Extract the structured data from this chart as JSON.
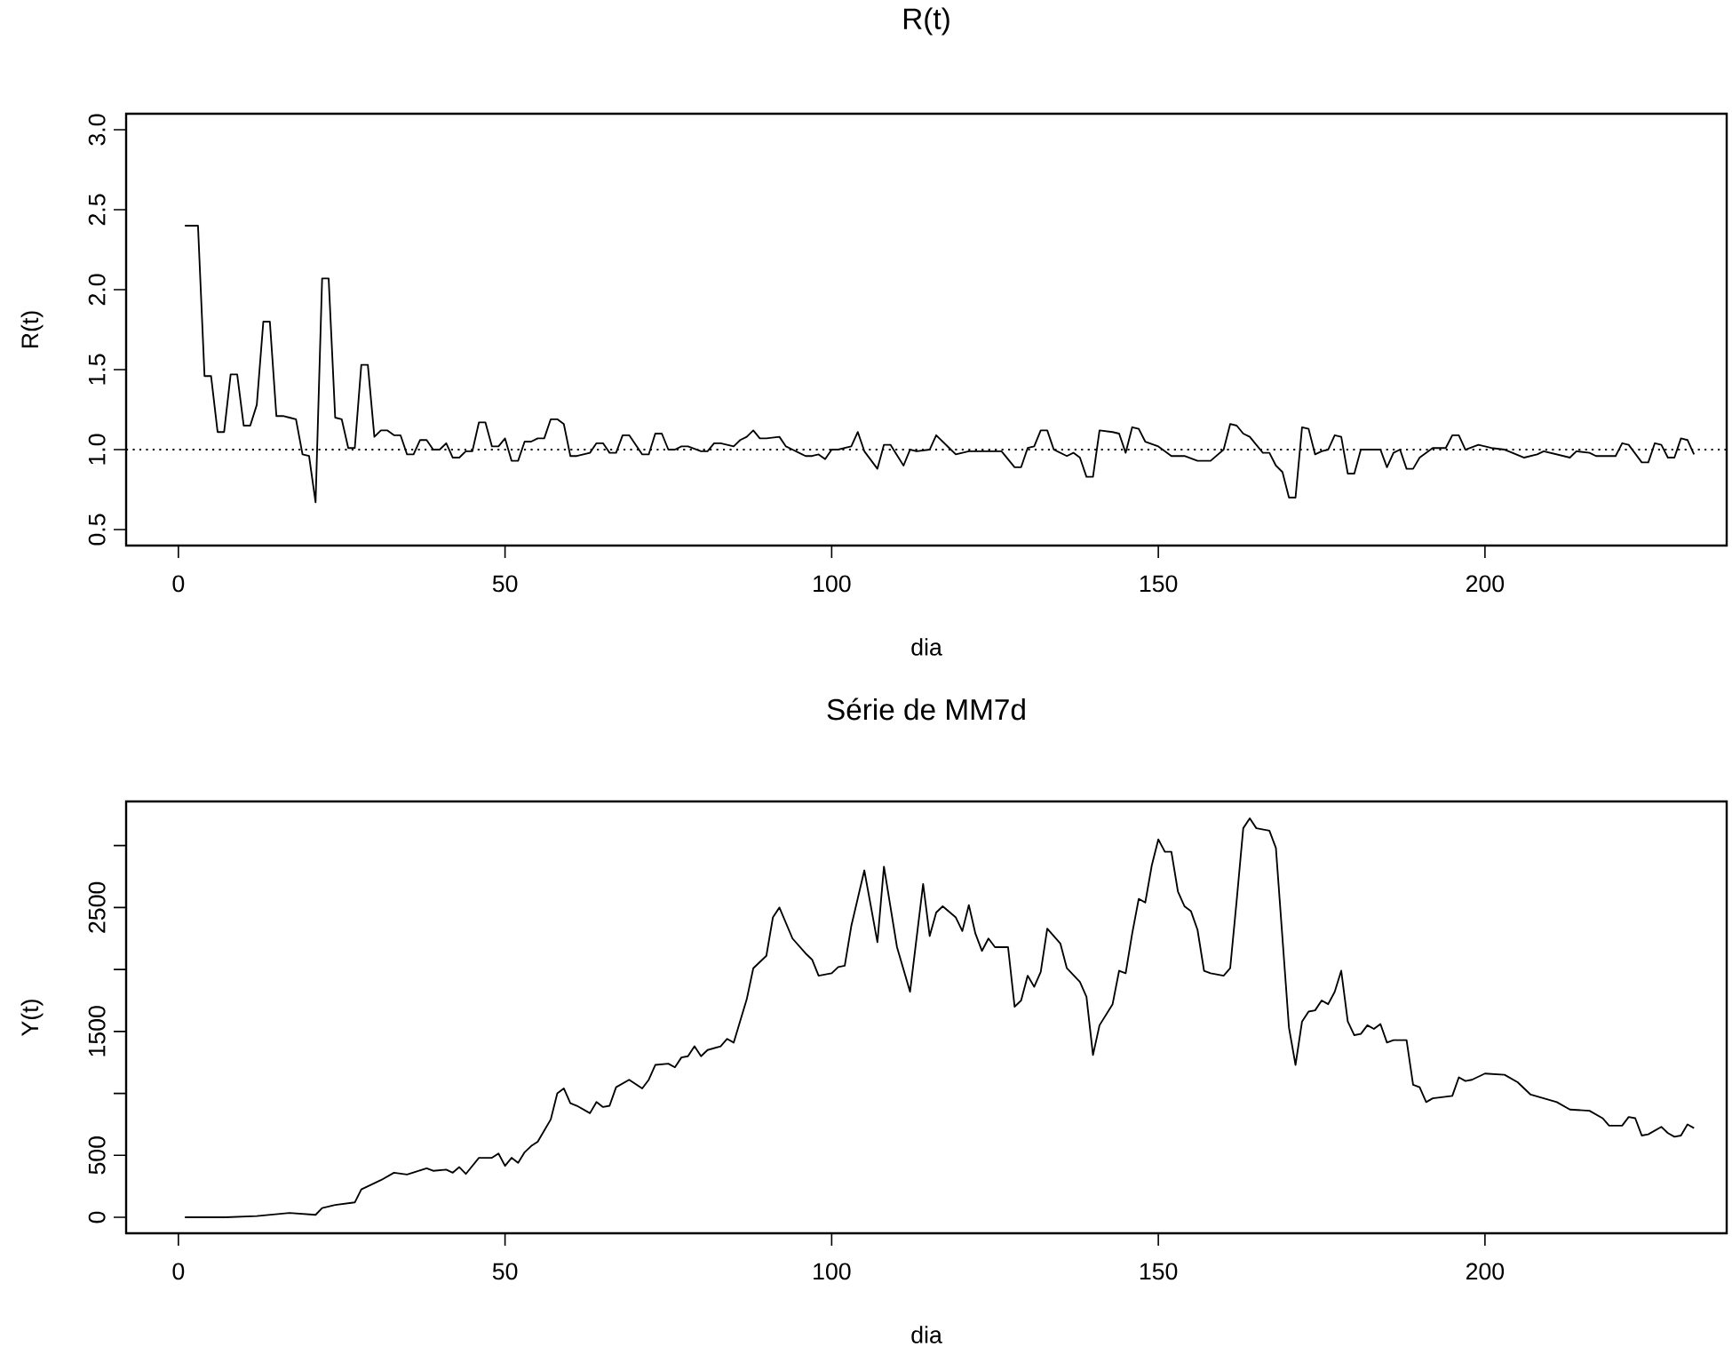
{
  "chart_data": [
    {
      "type": "line",
      "title": "R(t)",
      "xlabel": "dia",
      "ylabel": "R(t)",
      "marker": "none",
      "xlim": [
        -8,
        237
      ],
      "ylim": [
        0.4,
        3.1
      ],
      "xticks": [
        0,
        50,
        100,
        150,
        200
      ],
      "yticks": [
        {
          "value": 0.5,
          "label": "0.5"
        },
        {
          "value": 1,
          "label": "1.0"
        },
        {
          "value": 1.5,
          "label": "1.5"
        },
        {
          "value": 2,
          "label": "2.0"
        },
        {
          "value": 2.5,
          "label": "2.5"
        },
        {
          "value": 3,
          "label": "3.0"
        }
      ],
      "ref_lines": [
        {
          "axis": "y",
          "value": 1,
          "line_style": "dotted",
          "color": "#000000"
        }
      ],
      "x": [
        1,
        3,
        4,
        5,
        6,
        7,
        8,
        9,
        10,
        11,
        12,
        13,
        14,
        15,
        16,
        17,
        18,
        19,
        20,
        21,
        22,
        23,
        24,
        25,
        26,
        27,
        28,
        29,
        30,
        31,
        32,
        33,
        34,
        35,
        36,
        37,
        38,
        39,
        40,
        41,
        42,
        43,
        44,
        45,
        46,
        47,
        48,
        49,
        50,
        51,
        52,
        53,
        54,
        55,
        56,
        57,
        58,
        59,
        60,
        61,
        62,
        63,
        64,
        65,
        66,
        67,
        68,
        69,
        70,
        71,
        72,
        73,
        74,
        75,
        76,
        77,
        78,
        80,
        81,
        82,
        83,
        85,
        86,
        87,
        88,
        89,
        90,
        92,
        93,
        94,
        95,
        96,
        97,
        98,
        99,
        100,
        101,
        102,
        103,
        104,
        105,
        107,
        108,
        109,
        111,
        112,
        113,
        115,
        116,
        118,
        119,
        121,
        126,
        128,
        129,
        130,
        131,
        132,
        133,
        134,
        136,
        137,
        138,
        139,
        140,
        141,
        143,
        144,
        145,
        146,
        147,
        148,
        150,
        152,
        154,
        156,
        158,
        160,
        161,
        162,
        163,
        164,
        166,
        167,
        168,
        169,
        170,
        171,
        172,
        173,
        174,
        175,
        176,
        177,
        178,
        179,
        180,
        181,
        182,
        184,
        185,
        186,
        187,
        188,
        189,
        190,
        192,
        194,
        195,
        196,
        197,
        199,
        201,
        203,
        206,
        208,
        209,
        211,
        213,
        214,
        216,
        217,
        220,
        221,
        222,
        224,
        225,
        226,
        227,
        228,
        229,
        230,
        231,
        232
      ],
      "series": [
        {
          "color": "#000000",
          "values": [
            2.4,
            2.4,
            1.46,
            1.46,
            1.11,
            1.11,
            1.47,
            1.47,
            1.15,
            1.15,
            1.28,
            1.8,
            1.8,
            1.21,
            1.21,
            1.2,
            1.19,
            0.97,
            0.96,
            0.67,
            2.07,
            2.07,
            1.2,
            1.19,
            1.01,
            1.01,
            1.53,
            1.53,
            1.08,
            1.12,
            1.12,
            1.09,
            1.09,
            0.97,
            0.97,
            1.06,
            1.06,
            1.0,
            1.0,
            1.04,
            0.95,
            0.95,
            0.99,
            0.99,
            1.17,
            1.17,
            1.02,
            1.02,
            1.07,
            0.93,
            0.93,
            1.05,
            1.05,
            1.07,
            1.07,
            1.19,
            1.19,
            1.16,
            0.96,
            0.96,
            0.97,
            0.98,
            1.04,
            1.04,
            0.98,
            0.98,
            1.09,
            1.09,
            1.03,
            0.97,
            0.97,
            1.1,
            1.1,
            1.0,
            1.0,
            1.02,
            1.02,
            0.99,
            0.99,
            1.04,
            1.04,
            1.02,
            1.06,
            1.08,
            1.12,
            1.07,
            1.07,
            1.08,
            1.02,
            1.0,
            0.98,
            0.96,
            0.96,
            0.97,
            0.94,
            1.0,
            1.0,
            1.01,
            1.02,
            1.11,
            0.99,
            0.88,
            1.03,
            1.03,
            0.9,
            1.0,
            0.99,
            1.0,
            1.09,
            1.01,
            0.97,
            0.99,
            0.99,
            0.89,
            0.89,
            1.01,
            1.02,
            1.12,
            1.12,
            1.0,
            0.96,
            0.98,
            0.95,
            0.83,
            0.83,
            1.12,
            1.11,
            1.1,
            0.98,
            1.14,
            1.13,
            1.05,
            1.02,
            0.96,
            0.96,
            0.93,
            0.93,
            1.0,
            1.16,
            1.15,
            1.1,
            1.08,
            0.98,
            0.98,
            0.9,
            0.86,
            0.7,
            0.7,
            1.14,
            1.13,
            0.97,
            0.99,
            1.0,
            1.09,
            1.08,
            0.85,
            0.85,
            1.0,
            1.0,
            1.0,
            0.89,
            0.98,
            1.0,
            0.88,
            0.88,
            0.95,
            1.01,
            1.01,
            1.09,
            1.09,
            1.0,
            1.03,
            1.01,
            1.0,
            0.95,
            0.97,
            0.99,
            0.97,
            0.95,
            0.99,
            0.98,
            0.96,
            0.96,
            1.04,
            1.03,
            0.92,
            0.92,
            1.04,
            1.03,
            0.95,
            0.95,
            1.07,
            1.06,
            0.97
          ]
        }
      ]
    },
    {
      "type": "line",
      "title": "Série de MM7d",
      "xlabel": "dia",
      "ylabel": "Y(t)",
      "marker": "none",
      "xlim": [
        -8,
        237
      ],
      "ylim": [
        -129,
        3356
      ],
      "xticks": [
        0,
        50,
        100,
        150,
        200
      ],
      "yticks": [
        0,
        500,
        {
          "value": 1000,
          "label": null
        },
        1500,
        {
          "value": 2000,
          "label": null
        },
        2500,
        {
          "value": 3000,
          "label": null
        }
      ],
      "x": [
        1,
        7,
        12,
        17,
        21,
        22,
        24,
        27,
        28,
        31,
        33,
        35,
        38,
        39,
        41,
        42,
        43,
        44,
        46,
        48,
        49,
        50,
        51,
        52,
        53,
        54,
        55,
        57,
        58,
        59,
        60,
        61,
        63,
        64,
        65,
        66,
        67,
        69,
        71,
        72,
        73,
        75,
        76,
        77,
        78,
        79,
        80,
        81,
        83,
        84,
        85,
        87,
        88,
        90,
        91,
        92,
        94,
        96,
        97,
        98,
        100,
        101,
        102,
        103,
        105,
        107,
        108,
        110,
        112,
        114,
        115,
        116,
        117,
        119,
        120,
        121,
        122,
        123,
        124,
        125,
        127,
        128,
        129,
        130,
        131,
        132,
        133,
        135,
        136,
        138,
        139,
        140,
        141,
        143,
        144,
        145,
        146,
        147,
        148,
        149,
        150,
        151,
        152,
        153,
        154,
        155,
        156,
        157,
        158,
        160,
        161,
        162,
        163,
        164,
        165,
        167,
        168,
        170,
        171,
        172,
        173,
        174,
        175,
        176,
        177,
        178,
        179,
        180,
        181,
        182,
        183,
        184,
        185,
        186,
        188,
        189,
        190,
        191,
        192,
        195,
        196,
        197,
        198,
        200,
        203,
        205,
        207,
        209,
        211,
        213,
        216,
        218,
        219,
        221,
        222,
        223,
        224,
        225,
        227,
        228,
        229,
        230,
        231,
        232
      ],
      "series": [
        {
          "color": "#000000",
          "values": [
            0,
            0,
            10,
            35,
            20,
            75,
            100,
            120,
            225,
            300,
            360,
            345,
            395,
            375,
            385,
            360,
            405,
            350,
            480,
            480,
            515,
            415,
            480,
            440,
            525,
            575,
            610,
            790,
            1000,
            1040,
            920,
            900,
            840,
            930,
            890,
            900,
            1050,
            1110,
            1040,
            1110,
            1230,
            1240,
            1210,
            1290,
            1300,
            1380,
            1300,
            1350,
            1380,
            1440,
            1410,
            1760,
            2010,
            2110,
            2420,
            2500,
            2250,
            2130,
            2080,
            1950,
            1970,
            2020,
            2030,
            2350,
            2800,
            2220,
            2830,
            2180,
            1820,
            2690,
            2270,
            2460,
            2510,
            2420,
            2310,
            2520,
            2290,
            2150,
            2250,
            2180,
            2180,
            1700,
            1750,
            1950,
            1860,
            1980,
            2330,
            2210,
            2010,
            1900,
            1780,
            1310,
            1550,
            1720,
            1990,
            1970,
            2290,
            2570,
            2540,
            2840,
            3050,
            2950,
            2950,
            2630,
            2510,
            2470,
            2320,
            1990,
            1970,
            1950,
            2010,
            2560,
            3140,
            3220,
            3140,
            3120,
            2980,
            1530,
            1230,
            1580,
            1660,
            1670,
            1750,
            1720,
            1820,
            1990,
            1580,
            1470,
            1480,
            1550,
            1520,
            1560,
            1410,
            1430,
            1430,
            1070,
            1050,
            930,
            960,
            980,
            1130,
            1100,
            1110,
            1160,
            1150,
            1090,
            990,
            960,
            930,
            870,
            860,
            800,
            740,
            740,
            810,
            800,
            660,
            670,
            730,
            680,
            650,
            660,
            750,
            720
          ]
        }
      ]
    }
  ]
}
